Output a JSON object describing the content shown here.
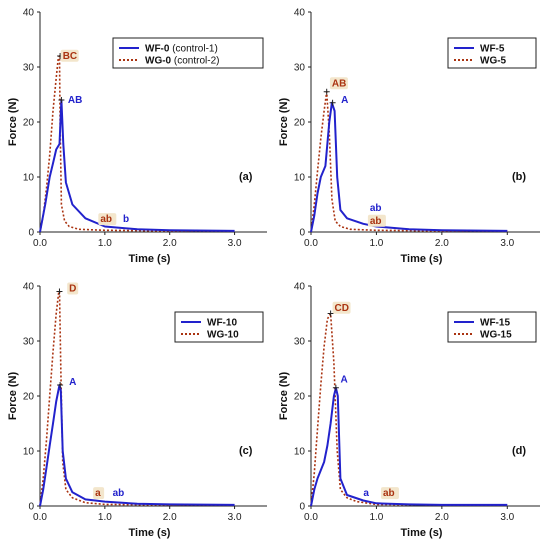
{
  "colors": {
    "wf": "#2222cc",
    "wg": "#aa3311",
    "ann_bg": "#f3e6cc"
  },
  "chart_data": [
    {
      "type": "line",
      "panel_label": "(a)",
      "xlabel": "Time (s)",
      "ylabel": "Force (N)",
      "xlim": [
        0,
        3.5
      ],
      "ylim": [
        0,
        40
      ],
      "xticks": [
        "0.0",
        "1.0",
        "2.0",
        "3.0"
      ],
      "yticks": [
        "0",
        "10",
        "20",
        "30",
        "40"
      ],
      "legend": "top-right",
      "series": [
        {
          "name": "WF-0",
          "name_suffix": " (control-1)",
          "style": "solid",
          "x": [
            0,
            0.08,
            0.15,
            0.2,
            0.25,
            0.3,
            0.33,
            0.36,
            0.4,
            0.5,
            0.7,
            1.0,
            1.5,
            2.0,
            3.0
          ],
          "y": [
            0,
            5,
            10,
            12.5,
            15,
            16,
            24,
            16,
            9,
            5,
            2.5,
            1,
            0.5,
            0.3,
            0.2
          ]
        },
        {
          "name": "WG-0",
          "name_suffix": " (control-2)",
          "style": "dotted",
          "x": [
            0,
            0.05,
            0.1,
            0.15,
            0.2,
            0.25,
            0.28,
            0.3,
            0.31,
            0.33,
            0.38,
            0.45,
            0.6,
            1.0,
            2.0,
            3.0
          ],
          "y": [
            0,
            3,
            8,
            14,
            22,
            28,
            31.5,
            32,
            20,
            5,
            2,
            1,
            0.5,
            0.3,
            0.2,
            0.2
          ]
        }
      ],
      "annotations": [
        {
          "text": "BC",
          "x": 0.35,
          "y": 31.5,
          "series": 1,
          "boxed": true
        },
        {
          "text": "AB",
          "x": 0.43,
          "y": 23.5,
          "series": 0,
          "boxed": false
        },
        {
          "text": "ab",
          "x": 0.93,
          "y": 1.8,
          "series": 1,
          "boxed": true
        },
        {
          "text": "b",
          "x": 1.28,
          "y": 1.8,
          "series": 0,
          "boxed": false
        }
      ],
      "peaks": [
        {
          "x": 0.31,
          "y": 32
        },
        {
          "x": 0.33,
          "y": 24
        }
      ]
    },
    {
      "type": "line",
      "panel_label": "(b)",
      "xlabel": "Time (s)",
      "ylabel": "Force (N)",
      "xlim": [
        0,
        3.5
      ],
      "ylim": [
        0,
        40
      ],
      "xticks": [
        "0.0",
        "1.0",
        "2.0",
        "3.0"
      ],
      "yticks": [
        "0",
        "10",
        "20",
        "30",
        "40"
      ],
      "legend": "top-right",
      "series": [
        {
          "name": "WF-5",
          "name_suffix": "",
          "style": "solid",
          "x": [
            0,
            0.05,
            0.1,
            0.15,
            0.22,
            0.28,
            0.32,
            0.36,
            0.4,
            0.45,
            0.55,
            0.8,
            1.0,
            1.5,
            2.0,
            3.0
          ],
          "y": [
            0,
            3,
            7,
            10,
            12,
            20,
            23.5,
            22,
            10,
            4,
            2.5,
            1.5,
            1,
            0.5,
            0.3,
            0.2
          ]
        },
        {
          "name": "WG-5",
          "name_suffix": "",
          "style": "dotted",
          "x": [
            0,
            0.05,
            0.1,
            0.15,
            0.2,
            0.24,
            0.28,
            0.32,
            0.37,
            0.45,
            0.6,
            1.0,
            2.0,
            3.0
          ],
          "y": [
            0,
            5,
            11,
            17,
            22,
            25.5,
            18,
            6,
            2,
            1,
            0.5,
            0.3,
            0.2,
            0.2
          ]
        }
      ],
      "annotations": [
        {
          "text": "AB",
          "x": 0.32,
          "y": 26.5,
          "series": 1,
          "boxed": true
        },
        {
          "text": "A",
          "x": 0.46,
          "y": 23.5,
          "series": 0,
          "boxed": false
        },
        {
          "text": "ab",
          "x": 0.9,
          "y": 3.8,
          "series": 0,
          "boxed": false
        },
        {
          "text": "ab",
          "x": 0.9,
          "y": 1.5,
          "series": 1,
          "boxed": true
        }
      ],
      "peaks": [
        {
          "x": 0.24,
          "y": 25.5
        },
        {
          "x": 0.33,
          "y": 23.5
        }
      ]
    },
    {
      "type": "line",
      "panel_label": "(c)",
      "xlabel": "Time (s)",
      "ylabel": "Force (N)",
      "xlim": [
        0,
        3.5
      ],
      "ylim": [
        0,
        40
      ],
      "xticks": [
        "0.0",
        "1.0",
        "2.0",
        "3.0"
      ],
      "yticks": [
        "0",
        "10",
        "20",
        "30",
        "40"
      ],
      "legend": "top-right",
      "series": [
        {
          "name": "WF-10",
          "name_suffix": "",
          "style": "solid",
          "x": [
            0,
            0.05,
            0.1,
            0.15,
            0.2,
            0.25,
            0.3,
            0.32,
            0.35,
            0.4,
            0.5,
            0.7,
            1.0,
            1.5,
            2.0,
            3.0
          ],
          "y": [
            0,
            3,
            7,
            11,
            15,
            19,
            22,
            21,
            10,
            5,
            2.5,
            1.2,
            0.8,
            0.4,
            0.3,
            0.2
          ]
        },
        {
          "name": "WG-10",
          "name_suffix": "",
          "style": "dotted",
          "x": [
            0,
            0.05,
            0.1,
            0.15,
            0.2,
            0.25,
            0.29,
            0.3,
            0.32,
            0.35,
            0.4,
            0.5,
            0.7,
            1.0,
            2.0,
            3.0
          ],
          "y": [
            0,
            5,
            12,
            20,
            28,
            35,
            39,
            39,
            25,
            8,
            3,
            1.5,
            0.6,
            0.3,
            0.2,
            0.2
          ]
        }
      ],
      "annotations": [
        {
          "text": "D",
          "x": 0.45,
          "y": 39,
          "series": 1,
          "boxed": true
        },
        {
          "text": "A",
          "x": 0.45,
          "y": 22,
          "series": 0,
          "boxed": false
        },
        {
          "text": "a",
          "x": 0.85,
          "y": 1.8,
          "series": 1,
          "boxed": true
        },
        {
          "text": "ab",
          "x": 1.12,
          "y": 1.8,
          "series": 0,
          "boxed": false
        }
      ],
      "peaks": [
        {
          "x": 0.3,
          "y": 39
        },
        {
          "x": 0.31,
          "y": 22
        }
      ]
    },
    {
      "type": "line",
      "panel_label": "(d)",
      "xlabel": "Time (s)",
      "ylabel": "Force (N)",
      "xlim": [
        0,
        3.5
      ],
      "ylim": [
        0,
        40
      ],
      "xticks": [
        "0.0",
        "1.0",
        "2.0",
        "3.0"
      ],
      "yticks": [
        "0",
        "10",
        "20",
        "30",
        "40"
      ],
      "legend": "top-right",
      "series": [
        {
          "name": "WF-15",
          "name_suffix": "",
          "style": "solid",
          "x": [
            0,
            0.05,
            0.1,
            0.15,
            0.2,
            0.25,
            0.3,
            0.35,
            0.38,
            0.41,
            0.45,
            0.55,
            0.8,
            1.0,
            1.5,
            2.0,
            3.0
          ],
          "y": [
            0,
            3,
            5,
            6.5,
            8,
            11,
            15,
            20,
            21.5,
            20,
            5,
            2,
            1,
            0.5,
            0.3,
            0.2,
            0.2
          ]
        },
        {
          "name": "WG-15",
          "name_suffix": "",
          "style": "dotted",
          "x": [
            0,
            0.05,
            0.1,
            0.15,
            0.2,
            0.25,
            0.3,
            0.35,
            0.4,
            0.45,
            0.55,
            0.7,
            1.0,
            2.0,
            3.0
          ],
          "y": [
            0,
            6,
            14,
            22,
            29,
            34,
            35,
            26,
            10,
            3,
            1.5,
            0.8,
            0.3,
            0.2,
            0.2
          ]
        }
      ],
      "annotations": [
        {
          "text": "CD",
          "x": 0.36,
          "y": 35.5,
          "series": 1,
          "boxed": true
        },
        {
          "text": "A",
          "x": 0.45,
          "y": 22.5,
          "series": 0,
          "boxed": false
        },
        {
          "text": "a",
          "x": 0.8,
          "y": 1.8,
          "series": 0,
          "boxed": false
        },
        {
          "text": "ab",
          "x": 1.1,
          "y": 1.8,
          "series": 1,
          "boxed": true
        }
      ],
      "peaks": [
        {
          "x": 0.3,
          "y": 35
        },
        {
          "x": 0.38,
          "y": 21.5
        }
      ]
    }
  ]
}
